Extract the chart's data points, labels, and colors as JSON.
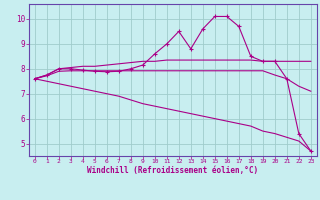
{
  "xlabel": "Windchill (Refroidissement éolien,°C)",
  "background_color": "#c8eef0",
  "grid_color": "#a0cccc",
  "line_color": "#aa0088",
  "spine_color": "#6644aa",
  "xlim": [
    -0.5,
    23.5
  ],
  "ylim": [
    4.5,
    10.6
  ],
  "x_ticks": [
    0,
    1,
    2,
    3,
    4,
    5,
    6,
    7,
    8,
    9,
    10,
    11,
    12,
    13,
    14,
    15,
    16,
    17,
    18,
    19,
    20,
    21,
    22,
    23
  ],
  "y_ticks": [
    5,
    6,
    7,
    8,
    9,
    10
  ],
  "lines": [
    {
      "x": [
        0,
        1,
        2,
        3,
        4,
        5,
        6,
        7,
        8,
        9,
        10,
        11,
        12,
        13,
        14,
        15,
        16,
        17,
        18,
        19,
        20,
        21,
        22,
        23
      ],
      "y": [
        7.6,
        7.75,
        8.0,
        8.0,
        7.95,
        7.9,
        7.88,
        7.9,
        8.0,
        8.15,
        8.6,
        9.0,
        9.5,
        8.8,
        9.6,
        10.1,
        10.1,
        9.7,
        8.5,
        8.3,
        8.3,
        7.6,
        5.4,
        4.7
      ],
      "marker": "+"
    },
    {
      "x": [
        0,
        1,
        2,
        3,
        4,
        5,
        6,
        7,
        8,
        9,
        10,
        11,
        12,
        13,
        14,
        15,
        16,
        17,
        18,
        19,
        20,
        21,
        22,
        23
      ],
      "y": [
        7.6,
        7.72,
        7.9,
        7.92,
        7.92,
        7.92,
        7.92,
        7.92,
        7.92,
        7.92,
        7.92,
        7.92,
        7.92,
        7.92,
        7.92,
        7.92,
        7.92,
        7.92,
        7.92,
        7.92,
        7.75,
        7.6,
        7.3,
        7.1
      ],
      "marker": null
    },
    {
      "x": [
        0,
        1,
        2,
        3,
        4,
        5,
        6,
        7,
        8,
        9,
        10,
        11,
        12,
        13,
        14,
        15,
        16,
        17,
        18,
        19,
        20,
        21,
        22,
        23
      ],
      "y": [
        7.6,
        7.75,
        8.0,
        8.05,
        8.1,
        8.1,
        8.15,
        8.2,
        8.25,
        8.3,
        8.3,
        8.35,
        8.35,
        8.35,
        8.35,
        8.35,
        8.35,
        8.35,
        8.35,
        8.3,
        8.3,
        8.3,
        8.3,
        8.3
      ],
      "marker": null
    },
    {
      "x": [
        0,
        1,
        2,
        3,
        4,
        5,
        6,
        7,
        8,
        9,
        10,
        11,
        12,
        13,
        14,
        15,
        16,
        17,
        18,
        19,
        20,
        21,
        22,
        23
      ],
      "y": [
        7.6,
        7.5,
        7.4,
        7.3,
        7.2,
        7.1,
        7.0,
        6.9,
        6.75,
        6.6,
        6.5,
        6.4,
        6.3,
        6.2,
        6.1,
        6.0,
        5.9,
        5.8,
        5.7,
        5.5,
        5.4,
        5.25,
        5.1,
        4.7
      ],
      "marker": null
    }
  ]
}
